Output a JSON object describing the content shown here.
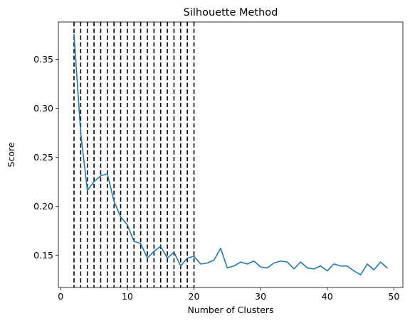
{
  "chart_data": {
    "type": "line",
    "title": "Silhouette Method",
    "xlabel": "Number of Clusters",
    "ylabel": "Score",
    "xlim": [
      -0.35,
      51.35
    ],
    "ylim": [
      0.117,
      0.388
    ],
    "xticks": [
      0,
      10,
      20,
      30,
      40,
      50
    ],
    "yticks": [
      0.15,
      0.2,
      0.25,
      0.3,
      0.35
    ],
    "xtick_labels": [
      "0",
      "10",
      "20",
      "30",
      "40",
      "50"
    ],
    "ytick_labels": [
      "0.15",
      "0.20",
      "0.25",
      "0.30",
      "0.35"
    ],
    "grid": false,
    "series": [
      {
        "color": "#1f77b4",
        "x": [
          2,
          3,
          4,
          5,
          6,
          7,
          8,
          9,
          10,
          11,
          12,
          13,
          14,
          15,
          16,
          17,
          18,
          19,
          20,
          21,
          22,
          23,
          24,
          25,
          26,
          27,
          28,
          29,
          30,
          31,
          32,
          33,
          34,
          35,
          36,
          37,
          38,
          39,
          40,
          41,
          42,
          43,
          44,
          45,
          46,
          47,
          48,
          49
        ],
        "y": [
          0.375,
          0.275,
          0.216,
          0.225,
          0.231,
          0.233,
          0.205,
          0.189,
          0.181,
          0.164,
          0.162,
          0.147,
          0.154,
          0.159,
          0.147,
          0.153,
          0.139,
          0.147,
          0.149,
          0.141,
          0.142,
          0.145,
          0.157,
          0.137,
          0.139,
          0.143,
          0.141,
          0.144,
          0.138,
          0.137,
          0.142,
          0.144,
          0.143,
          0.136,
          0.143,
          0.137,
          0.136,
          0.139,
          0.134,
          0.141,
          0.139,
          0.139,
          0.134,
          0.13,
          0.141,
          0.135,
          0.143,
          0.137
        ]
      }
    ],
    "vlines": {
      "x": [
        2,
        3,
        4,
        5,
        6,
        7,
        8,
        9,
        10,
        11,
        12,
        13,
        14,
        15,
        16,
        17,
        18,
        19,
        20
      ],
      "color": "#000000",
      "style": "dashed"
    }
  }
}
